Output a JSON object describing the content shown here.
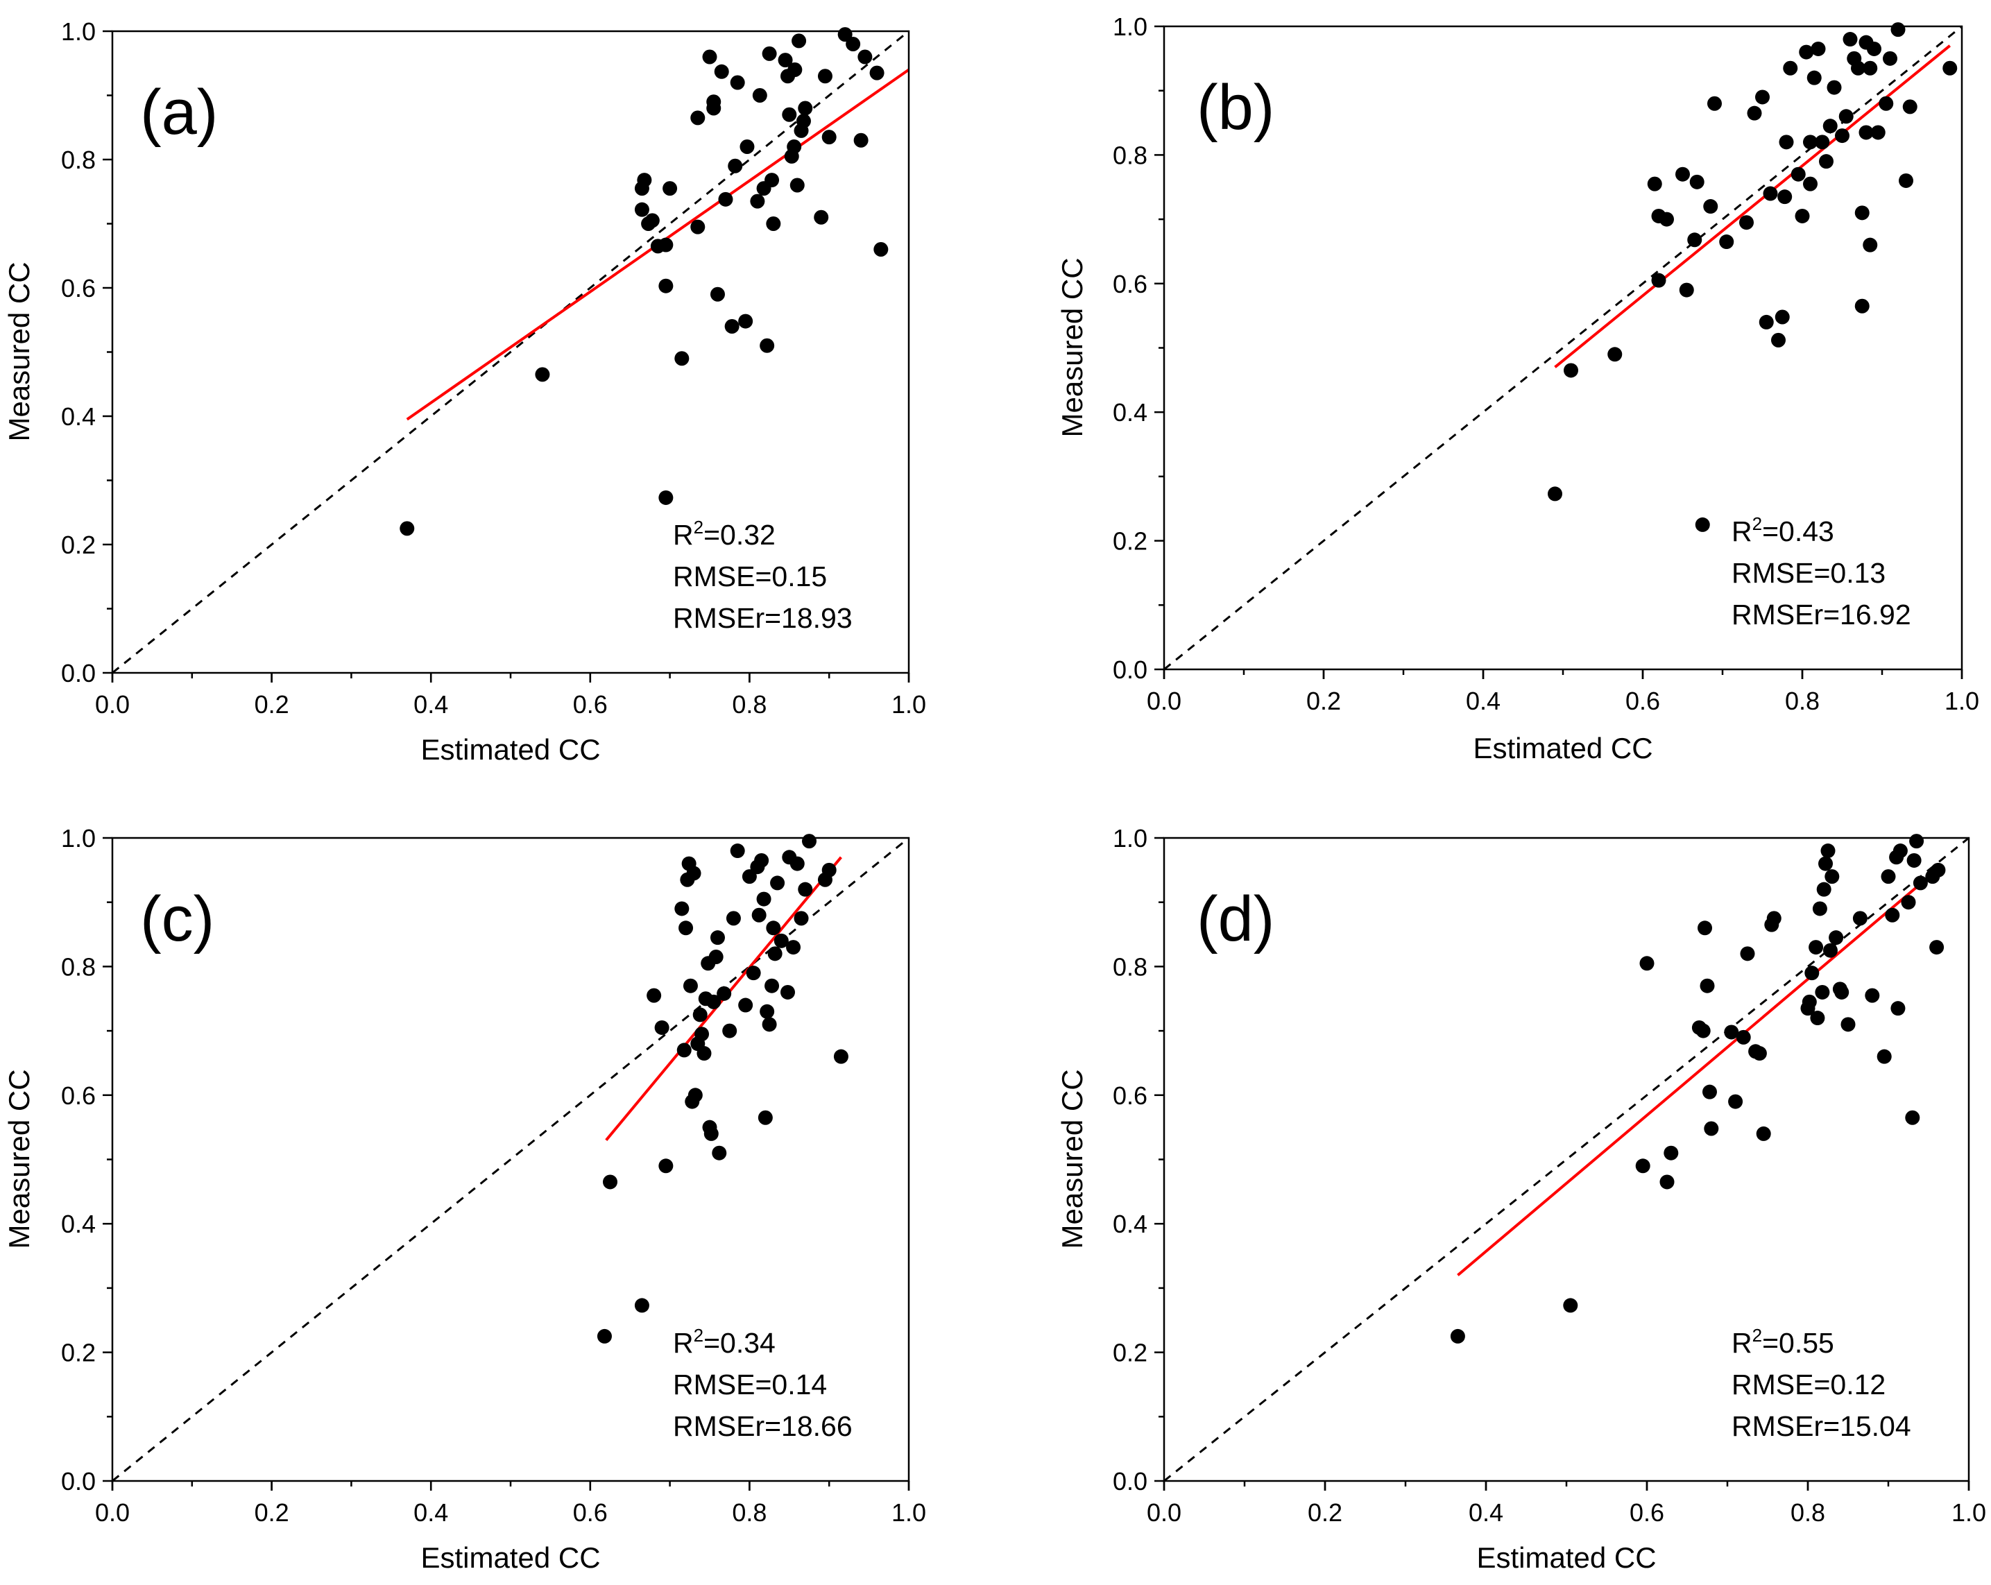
{
  "chart_data": [
    {
      "type": "scatter",
      "panel_label": "(a)",
      "xlabel": "Estimated CC",
      "ylabel": "Measured CC",
      "xlim": [
        0.0,
        1.0
      ],
      "ylim": [
        0.0,
        1.0
      ],
      "xticks": [
        "0.0",
        "0.2",
        "0.4",
        "0.6",
        "0.8",
        "1.0"
      ],
      "yticks": [
        "0.0",
        "0.2",
        "0.4",
        "0.6",
        "0.8",
        "1.0"
      ],
      "stats": {
        "r2_prefix": "R",
        "r2_sup": "2",
        "r2_value": "=0.32",
        "rmse": "RMSE=0.15",
        "rmser": "RMSEr=18.93"
      },
      "fit_line": {
        "x": [
          0.37,
          1.0
        ],
        "y": [
          0.395,
          0.94
        ]
      },
      "reference_line": {
        "x": [
          0.0,
          1.0
        ],
        "y": [
          0.0,
          1.0
        ]
      },
      "points": [
        [
          0.37,
          0.225
        ],
        [
          0.54,
          0.465
        ],
        [
          0.695,
          0.273
        ],
        [
          0.715,
          0.49
        ],
        [
          0.695,
          0.603
        ],
        [
          0.665,
          0.722
        ],
        [
          0.665,
          0.755
        ],
        [
          0.668,
          0.768
        ],
        [
          0.673,
          0.7
        ],
        [
          0.678,
          0.705
        ],
        [
          0.685,
          0.665
        ],
        [
          0.695,
          0.667
        ],
        [
          0.7,
          0.755
        ],
        [
          0.735,
          0.695
        ],
        [
          0.735,
          0.865
        ],
        [
          0.755,
          0.88
        ],
        [
          0.755,
          0.89
        ],
        [
          0.75,
          0.96
        ],
        [
          0.76,
          0.59
        ],
        [
          0.765,
          0.937
        ],
        [
          0.77,
          0.738
        ],
        [
          0.778,
          0.54
        ],
        [
          0.782,
          0.79
        ],
        [
          0.785,
          0.92
        ],
        [
          0.795,
          0.548
        ],
        [
          0.797,
          0.82
        ],
        [
          0.81,
          0.735
        ],
        [
          0.813,
          0.9
        ],
        [
          0.818,
          0.755
        ],
        [
          0.822,
          0.51
        ],
        [
          0.825,
          0.965
        ],
        [
          0.828,
          0.768
        ],
        [
          0.83,
          0.7
        ],
        [
          0.845,
          0.955
        ],
        [
          0.848,
          0.93
        ],
        [
          0.85,
          0.87
        ],
        [
          0.853,
          0.805
        ],
        [
          0.856,
          0.82
        ],
        [
          0.857,
          0.94
        ],
        [
          0.86,
          0.76
        ],
        [
          0.862,
          0.985
        ],
        [
          0.865,
          0.845
        ],
        [
          0.868,
          0.86
        ],
        [
          0.87,
          0.88
        ],
        [
          0.89,
          0.71
        ],
        [
          0.895,
          0.93
        ],
        [
          0.9,
          0.835
        ],
        [
          0.92,
          0.995
        ],
        [
          0.93,
          0.98
        ],
        [
          0.94,
          0.83
        ],
        [
          0.945,
          0.96
        ],
        [
          0.96,
          0.935
        ],
        [
          0.965,
          0.66
        ]
      ]
    },
    {
      "type": "scatter",
      "panel_label": "(b)",
      "xlabel": "Estimated CC",
      "ylabel": "Measured CC",
      "xlim": [
        0.0,
        1.0
      ],
      "ylim": [
        0.0,
        1.0
      ],
      "xticks": [
        "0.0",
        "0.2",
        "0.4",
        "0.6",
        "0.8",
        "1.0"
      ],
      "yticks": [
        "0.0",
        "0.2",
        "0.4",
        "0.6",
        "0.8",
        "1.0"
      ],
      "stats": {
        "r2_prefix": "R",
        "r2_sup": "2",
        "r2_value": "=0.43",
        "rmse": "RMSE=0.13",
        "rmser": "RMSEr=16.92"
      },
      "fit_line": {
        "x": [
          0.49,
          0.985
        ],
        "y": [
          0.47,
          0.97
        ]
      },
      "reference_line": {
        "x": [
          0.0,
          1.0
        ],
        "y": [
          0.0,
          1.0
        ]
      },
      "points": [
        [
          0.49,
          0.273
        ],
        [
          0.51,
          0.465
        ],
        [
          0.565,
          0.49
        ],
        [
          0.615,
          0.755
        ],
        [
          0.62,
          0.605
        ],
        [
          0.62,
          0.705
        ],
        [
          0.63,
          0.7
        ],
        [
          0.65,
          0.77
        ],
        [
          0.655,
          0.59
        ],
        [
          0.665,
          0.668
        ],
        [
          0.668,
          0.758
        ],
        [
          0.675,
          0.225
        ],
        [
          0.685,
          0.72
        ],
        [
          0.69,
          0.88
        ],
        [
          0.705,
          0.665
        ],
        [
          0.73,
          0.695
        ],
        [
          0.74,
          0.865
        ],
        [
          0.75,
          0.89
        ],
        [
          0.755,
          0.54
        ],
        [
          0.76,
          0.74
        ],
        [
          0.77,
          0.512
        ],
        [
          0.775,
          0.548
        ],
        [
          0.778,
          0.735
        ],
        [
          0.78,
          0.82
        ],
        [
          0.785,
          0.935
        ],
        [
          0.795,
          0.77
        ],
        [
          0.8,
          0.705
        ],
        [
          0.805,
          0.96
        ],
        [
          0.81,
          0.82
        ],
        [
          0.81,
          0.755
        ],
        [
          0.815,
          0.92
        ],
        [
          0.82,
          0.965
        ],
        [
          0.825,
          0.82
        ],
        [
          0.83,
          0.79
        ],
        [
          0.835,
          0.845
        ],
        [
          0.84,
          0.905
        ],
        [
          0.85,
          0.83
        ],
        [
          0.855,
          0.86
        ],
        [
          0.86,
          0.98
        ],
        [
          0.865,
          0.95
        ],
        [
          0.87,
          0.935
        ],
        [
          0.875,
          0.71
        ],
        [
          0.875,
          0.565
        ],
        [
          0.88,
          0.975
        ],
        [
          0.88,
          0.835
        ],
        [
          0.885,
          0.66
        ],
        [
          0.885,
          0.935
        ],
        [
          0.89,
          0.965
        ],
        [
          0.895,
          0.835
        ],
        [
          0.905,
          0.88
        ],
        [
          0.91,
          0.95
        ],
        [
          0.92,
          0.995
        ],
        [
          0.93,
          0.76
        ],
        [
          0.935,
          0.875
        ],
        [
          0.985,
          0.935
        ]
      ]
    },
    {
      "type": "scatter",
      "panel_label": "(c)",
      "xlabel": "Estimated CC",
      "ylabel": "Measured CC",
      "xlim": [
        0.0,
        1.0
      ],
      "ylim": [
        0.0,
        1.0
      ],
      "xticks": [
        "0.0",
        "0.2",
        "0.4",
        "0.6",
        "0.8",
        "1.0"
      ],
      "yticks": [
        "0.0",
        "0.2",
        "0.4",
        "0.6",
        "0.8",
        "1.0"
      ],
      "stats": {
        "r2_prefix": "R",
        "r2_sup": "2",
        "r2_value": "=0.34",
        "rmse": "RMSE=0.14",
        "rmser": "RMSEr=18.66"
      },
      "fit_line": {
        "x": [
          0.62,
          0.915
        ],
        "y": [
          0.53,
          0.97
        ]
      },
      "reference_line": {
        "x": [
          0.0,
          1.0
        ],
        "y": [
          0.0,
          1.0
        ]
      },
      "points": [
        [
          0.618,
          0.225
        ],
        [
          0.625,
          0.465
        ],
        [
          0.665,
          0.273
        ],
        [
          0.68,
          0.755
        ],
        [
          0.69,
          0.705
        ],
        [
          0.695,
          0.49
        ],
        [
          0.715,
          0.89
        ],
        [
          0.718,
          0.67
        ],
        [
          0.72,
          0.86
        ],
        [
          0.722,
          0.935
        ],
        [
          0.724,
          0.96
        ],
        [
          0.726,
          0.77
        ],
        [
          0.728,
          0.59
        ],
        [
          0.73,
          0.945
        ],
        [
          0.732,
          0.6
        ],
        [
          0.735,
          0.68
        ],
        [
          0.738,
          0.725
        ],
        [
          0.74,
          0.695
        ],
        [
          0.743,
          0.665
        ],
        [
          0.745,
          0.75
        ],
        [
          0.748,
          0.805
        ],
        [
          0.75,
          0.55
        ],
        [
          0.752,
          0.54
        ],
        [
          0.755,
          0.745
        ],
        [
          0.758,
          0.815
        ],
        [
          0.76,
          0.845
        ],
        [
          0.762,
          0.51
        ],
        [
          0.768,
          0.758
        ],
        [
          0.775,
          0.7
        ],
        [
          0.78,
          0.875
        ],
        [
          0.785,
          0.98
        ],
        [
          0.795,
          0.74
        ],
        [
          0.8,
          0.94
        ],
        [
          0.805,
          0.79
        ],
        [
          0.81,
          0.955
        ],
        [
          0.812,
          0.88
        ],
        [
          0.815,
          0.965
        ],
        [
          0.818,
          0.905
        ],
        [
          0.82,
          0.565
        ],
        [
          0.822,
          0.73
        ],
        [
          0.825,
          0.71
        ],
        [
          0.828,
          0.77
        ],
        [
          0.83,
          0.86
        ],
        [
          0.832,
          0.82
        ],
        [
          0.835,
          0.93
        ],
        [
          0.84,
          0.84
        ],
        [
          0.848,
          0.76
        ],
        [
          0.85,
          0.97
        ],
        [
          0.855,
          0.83
        ],
        [
          0.86,
          0.96
        ],
        [
          0.865,
          0.875
        ],
        [
          0.87,
          0.92
        ],
        [
          0.875,
          0.995
        ],
        [
          0.895,
          0.935
        ],
        [
          0.9,
          0.95
        ],
        [
          0.915,
          0.66
        ]
      ]
    },
    {
      "type": "scatter",
      "panel_label": "(d)",
      "xlabel": "Estimated CC",
      "ylabel": "Measured CC",
      "xlim": [
        0.0,
        1.0
      ],
      "ylim": [
        0.0,
        1.0
      ],
      "xticks": [
        "0.0",
        "0.2",
        "0.4",
        "0.6",
        "0.8",
        "1.0"
      ],
      "yticks": [
        "0.0",
        "0.2",
        "0.4",
        "0.6",
        "0.8",
        "1.0"
      ],
      "stats": {
        "r2_prefix": "R",
        "r2_sup": "2",
        "r2_value": "=0.55",
        "rmse": "RMSE=0.12",
        "rmser": "RMSEr=15.04"
      },
      "fit_line": {
        "x": [
          0.365,
          0.965
        ],
        "y": [
          0.32,
          0.955
        ]
      },
      "reference_line": {
        "x": [
          0.0,
          1.0
        ],
        "y": [
          0.0,
          1.0
        ]
      },
      "points": [
        [
          0.365,
          0.225
        ],
        [
          0.505,
          0.273
        ],
        [
          0.595,
          0.49
        ],
        [
          0.6,
          0.805
        ],
        [
          0.625,
          0.465
        ],
        [
          0.63,
          0.51
        ],
        [
          0.665,
          0.705
        ],
        [
          0.67,
          0.7
        ],
        [
          0.672,
          0.86
        ],
        [
          0.675,
          0.77
        ],
        [
          0.678,
          0.605
        ],
        [
          0.68,
          0.548
        ],
        [
          0.705,
          0.698
        ],
        [
          0.71,
          0.59
        ],
        [
          0.72,
          0.69
        ],
        [
          0.725,
          0.82
        ],
        [
          0.735,
          0.668
        ],
        [
          0.74,
          0.665
        ],
        [
          0.745,
          0.54
        ],
        [
          0.755,
          0.865
        ],
        [
          0.758,
          0.875
        ],
        [
          0.8,
          0.735
        ],
        [
          0.802,
          0.745
        ],
        [
          0.805,
          0.79
        ],
        [
          0.81,
          0.83
        ],
        [
          0.812,
          0.72
        ],
        [
          0.815,
          0.89
        ],
        [
          0.818,
          0.76
        ],
        [
          0.82,
          0.92
        ],
        [
          0.822,
          0.96
        ],
        [
          0.825,
          0.98
        ],
        [
          0.828,
          0.825
        ],
        [
          0.83,
          0.94
        ],
        [
          0.835,
          0.845
        ],
        [
          0.84,
          0.765
        ],
        [
          0.842,
          0.76
        ],
        [
          0.85,
          0.71
        ],
        [
          0.865,
          0.875
        ],
        [
          0.88,
          0.755
        ],
        [
          0.895,
          0.66
        ],
        [
          0.9,
          0.94
        ],
        [
          0.905,
          0.88
        ],
        [
          0.91,
          0.97
        ],
        [
          0.912,
          0.735
        ],
        [
          0.915,
          0.98
        ],
        [
          0.925,
          0.9
        ],
        [
          0.93,
          0.565
        ],
        [
          0.932,
          0.965
        ],
        [
          0.935,
          0.995
        ],
        [
          0.94,
          0.93
        ],
        [
          0.955,
          0.94
        ],
        [
          0.96,
          0.83
        ],
        [
          0.962,
          0.95
        ]
      ]
    }
  ]
}
